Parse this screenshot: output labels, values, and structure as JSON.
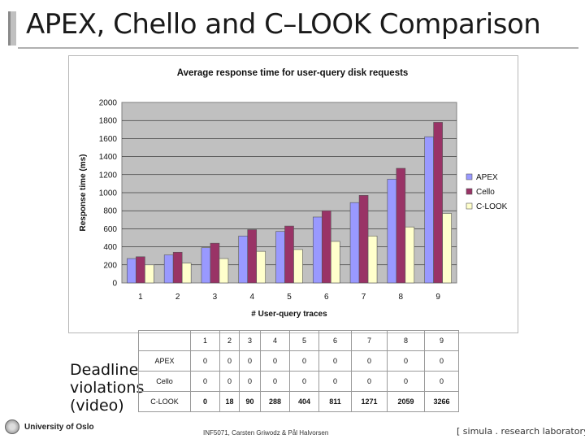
{
  "slide": {
    "title": "APEX, Chello and C–LOOK Comparison",
    "side_label_lines": [
      "Deadline",
      "violations",
      "(video)"
    ],
    "footer": {
      "university": "University of Oslo",
      "authors": "INF5071, Carsten Griwodz & Pål Halvorsen",
      "lab": "[ simula . research laboratory ]"
    }
  },
  "chart_data": {
    "type": "bar",
    "title": "Average response time for user-query disk requests",
    "xlabel": "# User-query traces",
    "ylabel": "Response time (ms)",
    "categories": [
      "1",
      "2",
      "3",
      "4",
      "5",
      "6",
      "7",
      "8",
      "9"
    ],
    "ylim": [
      0,
      2000
    ],
    "yticks": [
      "0",
      "200",
      "400",
      "600",
      "800",
      "1000",
      "1200",
      "1400",
      "1600",
      "1800",
      "2000"
    ],
    "grid": true,
    "legend_position": "right",
    "series": [
      {
        "name": "APEX",
        "color": "#9999ff",
        "values": [
          270,
          310,
          390,
          520,
          570,
          730,
          890,
          1150,
          1620
        ]
      },
      {
        "name": "Cello",
        "color": "#993366",
        "values": [
          290,
          340,
          440,
          590,
          630,
          800,
          970,
          1270,
          1780
        ]
      },
      {
        "name": "C-LOOK",
        "color": "#ffffcc",
        "values": [
          200,
          220,
          270,
          350,
          370,
          460,
          520,
          620,
          770
        ]
      }
    ]
  },
  "violations_table": {
    "header": [
      "1",
      "2",
      "3",
      "4",
      "5",
      "6",
      "7",
      "8",
      "9"
    ],
    "rows": [
      {
        "label": "APEX",
        "values": [
          "0",
          "0",
          "0",
          "0",
          "0",
          "0",
          "0",
          "0",
          "0"
        ]
      },
      {
        "label": "Cello",
        "values": [
          "0",
          "0",
          "0",
          "0",
          "0",
          "0",
          "0",
          "0",
          "0"
        ]
      },
      {
        "label": "C-LOOK",
        "values": [
          "0",
          "18",
          "90",
          "288",
          "404",
          "811",
          "1271",
          "2059",
          "3266"
        ]
      }
    ]
  }
}
